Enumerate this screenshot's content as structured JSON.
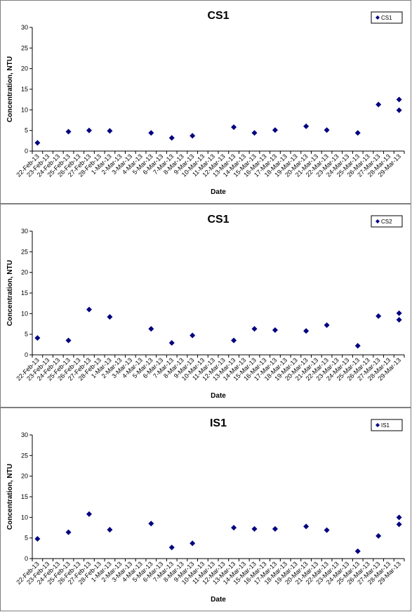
{
  "dates": [
    "22-Feb-13",
    "23-Feb-13",
    "24-Feb-13",
    "25-Feb-13",
    "26-Feb-13",
    "27-Feb-13",
    "28-Feb-13",
    "1-Mar-13",
    "2-Mar-13",
    "3-Mar-13",
    "4-Mar-13",
    "5-Mar-13",
    "6-Mar-13",
    "7-Mar-13",
    "8-Mar-13",
    "9-Mar-13",
    "10-Mar-13",
    "11-Mar-13",
    "12-Mar-13",
    "13-Mar-13",
    "14-Mar-13",
    "15-Mar-13",
    "16-Mar-13",
    "17-Mar-13",
    "18-Mar-13",
    "19-Mar-13",
    "20-Mar-13",
    "21-Mar-13",
    "22-Mar-13",
    "23-Mar-13",
    "24-Mar-13",
    "25-Mar-13",
    "26-Mar-13",
    "27-Mar-13",
    "28-Mar-13",
    "29-Mar-13"
  ],
  "chart_data": [
    {
      "type": "scatter",
      "title": "CS1",
      "xlabel": "Date",
      "ylabel": "Concentration, NTU",
      "ylim": [
        0,
        30
      ],
      "yticks": [
        0,
        5,
        10,
        15,
        20,
        25,
        30
      ],
      "xtick_labels": [
        "22-Feb-13",
        "23-Feb-13",
        "24-Feb-13",
        "25-Feb-13",
        "26-Feb-13",
        "27-Feb-13",
        "28-Feb-13",
        "1-Mar-13",
        "2-Mar-13",
        "3-Mar-13",
        "4-Mar-13",
        "5-Mar-13",
        "6-Mar-13",
        "7-Mar-13",
        "8-Mar-13",
        "9-Mar-13",
        "10-Mar-13",
        "11-Mar-13",
        "12-Mar-13",
        "13-Mar-13",
        "14-Mar-13",
        "15-Mar-13",
        "16-Mar-13",
        "17-Mar-13",
        "18-Mar-13",
        "19-Mar-13",
        "20-Mar-13",
        "21-Mar-13",
        "22-Mar-13",
        "23-Mar-13",
        "24-Mar-13",
        "25-Mar-13",
        "26-Mar-13",
        "27-Mar-13",
        "28-Mar-13",
        "29-Mar-13"
      ],
      "grid": false,
      "legend_position": "top-right",
      "series": [
        {
          "name": "CS1",
          "color": "#000080",
          "marker": "diamond",
          "points": [
            {
              "x": "22-Feb-13",
              "y": 2.0
            },
            {
              "x": "25-Feb-13",
              "y": 4.7
            },
            {
              "x": "27-Feb-13",
              "y": 5.0
            },
            {
              "x": "1-Mar-13",
              "y": 4.9
            },
            {
              "x": "5-Mar-13",
              "y": 4.4
            },
            {
              "x": "7-Mar-13",
              "y": 3.2
            },
            {
              "x": "9-Mar-13",
              "y": 3.7
            },
            {
              "x": "13-Mar-13",
              "y": 5.8
            },
            {
              "x": "15-Mar-13",
              "y": 4.4
            },
            {
              "x": "17-Mar-13",
              "y": 5.1
            },
            {
              "x": "20-Mar-13",
              "y": 6.0
            },
            {
              "x": "22-Mar-13",
              "y": 5.1
            },
            {
              "x": "25-Mar-13",
              "y": 4.4
            },
            {
              "x": "27-Mar-13",
              "y": 11.3
            },
            {
              "x": "29-Mar-13",
              "y": 9.9
            },
            {
              "x": "31-Mar-13",
              "y": 12.5
            }
          ]
        }
      ]
    },
    {
      "type": "scatter",
      "title": "CS1",
      "xlabel": "Date",
      "ylabel": "Concentration, NTU",
      "ylim": [
        0,
        30
      ],
      "yticks": [
        0,
        5,
        10,
        15,
        20,
        25,
        30
      ],
      "xtick_labels": [
        "22-Feb-13",
        "23-Feb-13",
        "24-Feb-13",
        "25-Feb-13",
        "26-Feb-13",
        "27-Feb-13",
        "28-Feb-13",
        "1-Mar-13",
        "2-Mar-13",
        "3-Mar-13",
        "4-Mar-13",
        "5-Mar-13",
        "6-Mar-13",
        "7-Mar-13",
        "8-Mar-13",
        "9-Mar-13",
        "10-Mar-13",
        "11-Mar-13",
        "12-Mar-13",
        "13-Mar-13",
        "14-Mar-13",
        "15-Mar-13",
        "16-Mar-13",
        "17-Mar-13",
        "18-Mar-13",
        "19-Mar-13",
        "20-Mar-13",
        "21-Mar-13",
        "22-Mar-13",
        "23-Mar-13",
        "24-Mar-13",
        "25-Mar-13",
        "26-Mar-13",
        "27-Mar-13",
        "28-Mar-13",
        "29-Mar-13"
      ],
      "grid": false,
      "legend_position": "top-right",
      "series": [
        {
          "name": "CS2",
          "color": "#000080",
          "marker": "diamond",
          "points": [
            {
              "x": "22-Feb-13",
              "y": 4.1
            },
            {
              "x": "25-Feb-13",
              "y": 3.5
            },
            {
              "x": "27-Feb-13",
              "y": 11.0
            },
            {
              "x": "1-Mar-13",
              "y": 9.2
            },
            {
              "x": "5-Mar-13",
              "y": 6.3
            },
            {
              "x": "7-Mar-13",
              "y": 2.9
            },
            {
              "x": "9-Mar-13",
              "y": 4.7
            },
            {
              "x": "13-Mar-13",
              "y": 3.5
            },
            {
              "x": "15-Mar-13",
              "y": 6.3
            },
            {
              "x": "17-Mar-13",
              "y": 6.0
            },
            {
              "x": "20-Mar-13",
              "y": 5.8
            },
            {
              "x": "22-Mar-13",
              "y": 7.2
            },
            {
              "x": "25-Mar-13",
              "y": 2.2
            },
            {
              "x": "27-Mar-13",
              "y": 9.4
            },
            {
              "x": "29-Mar-13",
              "y": 10.1
            },
            {
              "x": "31-Mar-13",
              "y": 8.5
            }
          ]
        }
      ]
    },
    {
      "type": "scatter",
      "title": "IS1",
      "xlabel": "Date",
      "ylabel": "Concentration, NTU",
      "ylim": [
        0,
        30
      ],
      "yticks": [
        0,
        5,
        10,
        15,
        20,
        25,
        30
      ],
      "xtick_labels": [
        "22-Feb-13",
        "23-Feb-13",
        "24-Feb-13",
        "25-Feb-13",
        "26-Feb-13",
        "27-Feb-13",
        "28-Feb-13",
        "1-Mar-13",
        "2-Mar-13",
        "3-Mar-13",
        "4-Mar-13",
        "5-Mar-13",
        "6-Mar-13",
        "7-Mar-13",
        "8-Mar-13",
        "9-Mar-13",
        "10-Mar-13",
        "11-Mar-13",
        "12-Mar-13",
        "13-Mar-13",
        "14-Mar-13",
        "15-Mar-13",
        "16-Mar-13",
        "17-Mar-13",
        "18-Mar-13",
        "19-Mar-13",
        "20-Mar-13",
        "21-Mar-13",
        "22-Mar-13",
        "23-Mar-13",
        "24-Mar-13",
        "25-Mar-13",
        "26-Mar-13",
        "27-Mar-13",
        "28-Mar-13",
        "29-Mar-13"
      ],
      "grid": false,
      "legend_position": "top-right",
      "series": [
        {
          "name": "IS1",
          "color": "#000080",
          "marker": "diamond",
          "points": [
            {
              "x": "22-Feb-13",
              "y": 4.8
            },
            {
              "x": "25-Feb-13",
              "y": 6.4
            },
            {
              "x": "27-Feb-13",
              "y": 10.8
            },
            {
              "x": "1-Mar-13",
              "y": 7.0
            },
            {
              "x": "5-Mar-13",
              "y": 8.5
            },
            {
              "x": "7-Mar-13",
              "y": 2.7
            },
            {
              "x": "9-Mar-13",
              "y": 3.7
            },
            {
              "x": "13-Mar-13",
              "y": 7.5
            },
            {
              "x": "15-Mar-13",
              "y": 7.2
            },
            {
              "x": "17-Mar-13",
              "y": 7.2
            },
            {
              "x": "20-Mar-13",
              "y": 7.8
            },
            {
              "x": "22-Mar-13",
              "y": 6.9
            },
            {
              "x": "25-Mar-13",
              "y": 1.8
            },
            {
              "x": "27-Mar-13",
              "y": 5.5
            },
            {
              "x": "29-Mar-13",
              "y": 8.3
            },
            {
              "x": "31-Mar-13",
              "y": 10.0
            }
          ]
        }
      ]
    }
  ]
}
